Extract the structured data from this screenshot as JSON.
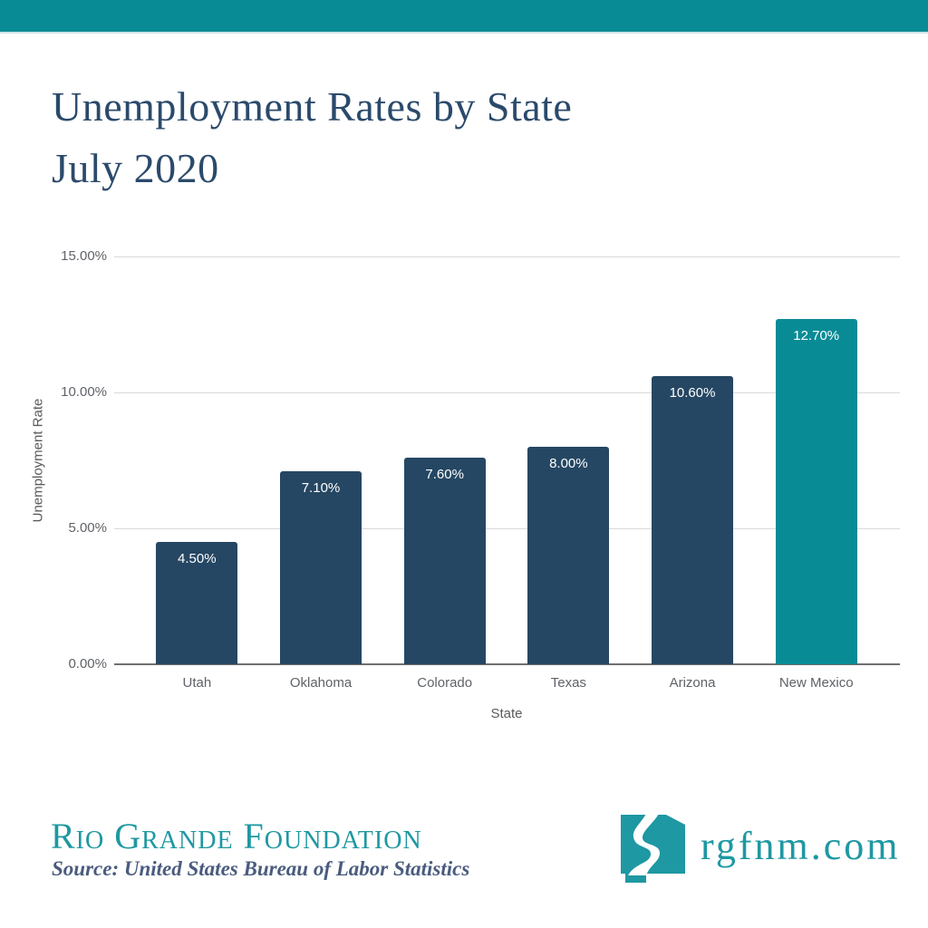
{
  "theme": {
    "teal": "#098b96",
    "navy": "#254763",
    "title_navy": "#2b4a6b",
    "grid": "#d9d9d9",
    "axis": "#707070",
    "label_gray": "#5f6368",
    "axis_title_gray": "#5a5a5a",
    "footer_teal": "#1e98a2",
    "source_blue": "#4a5b7e"
  },
  "title": {
    "line1": "Unemployment Rates by State",
    "line2": "July 2020"
  },
  "chart_data": {
    "type": "bar",
    "title": "Unemployment Rates by State July 2020",
    "xlabel": "State",
    "ylabel": "Unemployment Rate",
    "categories": [
      "Utah",
      "Oklahoma",
      "Colorado",
      "Texas",
      "Arizona",
      "New Mexico"
    ],
    "values": [
      4.5,
      7.1,
      7.6,
      8.0,
      10.6,
      12.7
    ],
    "value_labels": [
      "4.50%",
      "7.10%",
      "7.60%",
      "8.00%",
      "10.60%",
      "12.70%"
    ],
    "ylim": [
      0,
      15
    ],
    "yticks": [
      {
        "value": 0,
        "label": "0.00%"
      },
      {
        "value": 5,
        "label": "5.00%"
      },
      {
        "value": 10,
        "label": "10.00%"
      },
      {
        "value": 15,
        "label": "15.00%"
      }
    ],
    "bar_color": "#254763",
    "highlight_color": "#098b96",
    "highlight_index": 5,
    "grid": true,
    "legend": false
  },
  "footer": {
    "org_name": "Rio Grande Foundation",
    "source": "Source: United States Bureau of Labor Statistics",
    "website": "rgfnm.com",
    "logo": "new-mexico-river-logo"
  }
}
